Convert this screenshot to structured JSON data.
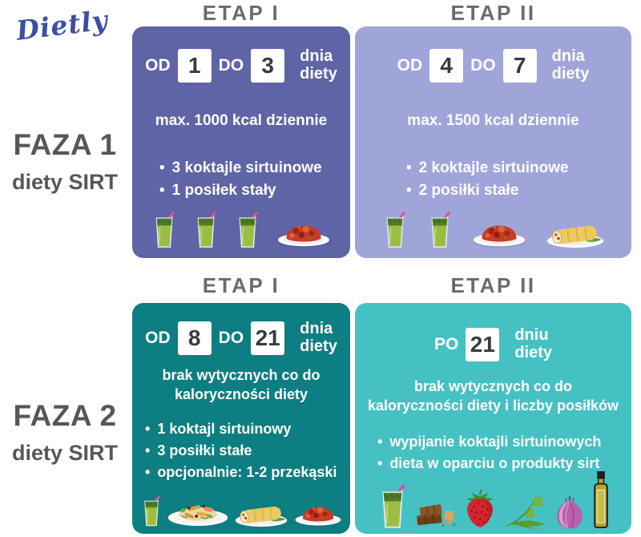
{
  "logo": {
    "text": "Dietly"
  },
  "colors": {
    "logo_blue": "#3b4fa4",
    "heading_gray": "#6a6b6e",
    "phase_gray": "#56575a",
    "panel_faza1_etap1": "#5e64a5",
    "panel_faza1_etap2": "#a0a5d9",
    "panel_faza2_etap1": "#0d7e81",
    "panel_faza2_etap2": "#45c1c3",
    "number_box_bg": "#ffffff",
    "number_box_text": "#3a3b40",
    "panel_text": "#ffffff"
  },
  "phases": [
    {
      "title": "FAZA 1",
      "subtitle": "diety SIRT"
    },
    {
      "title": "FAZA 2",
      "subtitle": "diety SIRT"
    }
  ],
  "panels": [
    {
      "header": "ETAP I",
      "range": {
        "pre": "OD",
        "from": "1",
        "mid": "DO",
        "to": "3",
        "unit_line1": "dnia",
        "unit_line2": "diety"
      },
      "note_lines": [
        "max. 1000 kcal dziennie"
      ],
      "bullets": [
        "3 koktajle sirtuinowe",
        "1 posiłek stały"
      ],
      "icons": [
        "smoothie",
        "smoothie",
        "smoothie",
        "plate-red"
      ]
    },
    {
      "header": "ETAP II",
      "range": {
        "pre": "OD",
        "from": "4",
        "mid": "DO",
        "to": "7",
        "unit_line1": "dnia",
        "unit_line2": "diety"
      },
      "note_lines": [
        "max. 1500 kcal dziennie"
      ],
      "bullets": [
        "2 koktajle sirtuinowe",
        "2 posiłki stałe"
      ],
      "icons": [
        "smoothie",
        "smoothie",
        "plate-red",
        "plate-wrap"
      ]
    },
    {
      "header": "ETAP I",
      "range": {
        "pre": "OD",
        "from": "8",
        "mid": "DO",
        "to": "21",
        "unit_line1": "dnia",
        "unit_line2": "diety"
      },
      "note_lines": [
        "brak wytycznych co do",
        "kaloryczności diety"
      ],
      "bullets": [
        "1 koktajl sirtuinowy",
        "3 posiłki stałe",
        "opcjonalnie: 1-2 przekąski"
      ],
      "icons": [
        "smoothie",
        "plate-salad",
        "plate-wrap",
        "plate-red"
      ]
    },
    {
      "header": "ETAP II",
      "range": {
        "pre": "PO",
        "from": "21",
        "unit_line1": "dniu",
        "unit_line2": "diety"
      },
      "note_lines": [
        "brak wytycznych co do",
        "kaloryczności diety i liczby posiłków"
      ],
      "bullets": [
        "wypijanie koktajli sirtuinowych",
        "dieta w oparciu o produkty sirt"
      ],
      "icons": [
        "smoothie",
        "chocolate",
        "strawberry",
        "arugula",
        "onion",
        "oil-bottle"
      ]
    }
  ]
}
